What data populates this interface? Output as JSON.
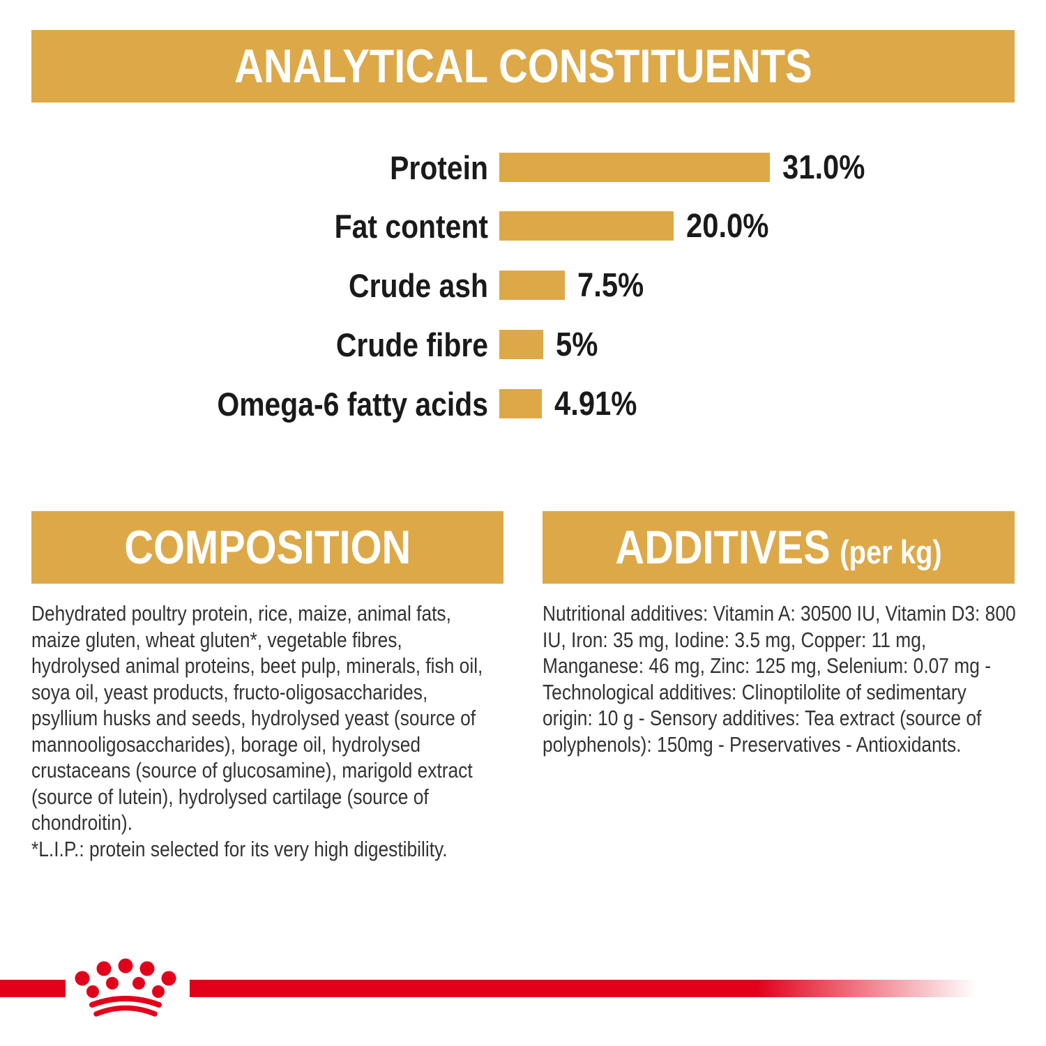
{
  "colors": {
    "gold": "#DDA847",
    "red": "#E2001A",
    "heading_text": "#FFFFFF",
    "label_text": "#1A1A1A",
    "body_text": "#333333",
    "page_bg": "#FFFFFF"
  },
  "sections": {
    "analytical": {
      "title": "ANALYTICAL CONSTITUENTS"
    },
    "composition": {
      "title": "COMPOSITION",
      "lines": [
        "Dehydrated poultry protein, rice, maize, animal fats,",
        "maize gluten, wheat gluten*, vegetable fibres,",
        "hydrolysed animal proteins, beet pulp, minerals, fish oil,",
        "soya oil, yeast products, fructo-oligosaccharides,",
        "psyllium husks and seeds, hydrolysed yeast (source of",
        "mannooligosaccharides), borage oil, hydrolysed",
        "crustaceans (source of glucosamine), marigold extract",
        "(source of lutein), hydrolysed cartilage (source of",
        "chondroitin).",
        "*L.I.P.: protein selected for its very high digestibility."
      ]
    },
    "additives": {
      "title": "ADDITIVES",
      "title_suffix": "(per kg)",
      "lines": [
        "Nutritional additives: Vitamin A: 30500 IU, Vitamin D3: 800",
        "IU, Iron: 35 mg, Iodine: 3.5 mg, Copper: 11 mg,",
        "Manganese: 46 mg, Zinc: 125 mg, Selenium: 0.07 mg -",
        "Technological additives: Clinoptilolite of sedimentary",
        "origin: 10 g - Sensory additives: Tea extract (source of",
        "polyphenols): 150mg - Preservatives - Antioxidants."
      ]
    }
  },
  "chart_data": {
    "type": "bar",
    "orientation": "horizontal",
    "title": "ANALYTICAL CONSTITUENTS",
    "categories": [
      "Protein",
      "Fat content",
      "Crude ash",
      "Crude fibre",
      "Omega-6 fatty acids"
    ],
    "values": [
      31.0,
      20.0,
      7.5,
      5,
      4.91
    ],
    "value_labels": [
      "31.0%",
      "20.0%",
      "7.5%",
      "5%",
      "4.91%"
    ],
    "unit": "%",
    "xlabel": "",
    "ylabel": "",
    "xlim": [
      0,
      31
    ],
    "grid": false,
    "legend": false,
    "bar_color": "#DDA847"
  },
  "footer": {
    "logo": "royal-canin-crown",
    "stripe_color": "#E2001A"
  }
}
